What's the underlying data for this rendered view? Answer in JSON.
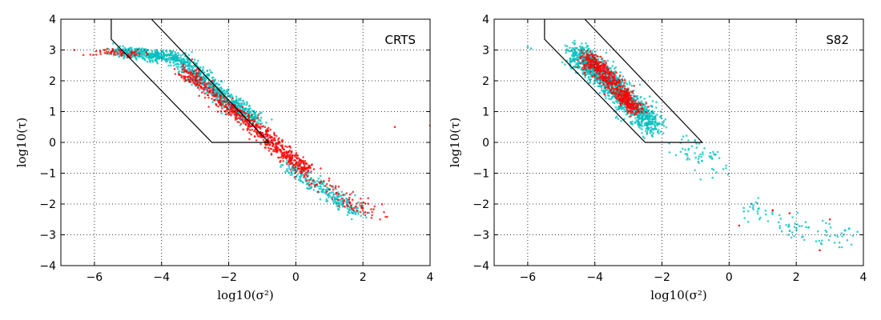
{
  "chart_data": [
    {
      "type": "scatter",
      "title": "CRTS",
      "xlabel": "log10(σ²)",
      "ylabel": "log10(τ)",
      "xlim": [
        -7,
        4
      ],
      "ylim": [
        -4,
        4
      ],
      "xticks": [
        -6,
        -4,
        -2,
        0,
        2,
        4
      ],
      "yticks": [
        -4,
        -3,
        -2,
        -1,
        0,
        1,
        2,
        3,
        4
      ],
      "xtick_labels": [
        "−6",
        "−4",
        "−2",
        "0",
        "2",
        "4"
      ],
      "ytick_labels": [
        "−4",
        "−3",
        "−2",
        "−1",
        "0",
        "1",
        "2",
        "3",
        "4"
      ],
      "grid": true,
      "selection_region": [
        [
          -5.5,
          4
        ],
        [
          -5.5,
          3.35
        ],
        [
          -2.5,
          0
        ],
        [
          -0.8,
          0
        ],
        [
          -4.3,
          4
        ]
      ],
      "series": [
        {
          "name": "cyan",
          "color": "#00bfbf",
          "clusters": [
            {
              "n": 1100,
              "path": [
                [
                  -5.3,
                  2.95
                ],
                [
                  -3.5,
                  2.75
                ],
                [
                  -2.3,
                  1.6
                ],
                [
                  -1.2,
                  0.7
                ]
              ],
              "spread": [
                0.35,
                0.18
              ]
            },
            {
              "n": 280,
              "path": [
                [
                  -0.3,
                  -0.7
                ],
                [
                  0.8,
                  -1.5
                ],
                [
                  1.9,
                  -2.3
                ]
              ],
              "spread": [
                0.3,
                0.2
              ]
            }
          ]
        },
        {
          "name": "red",
          "color": "#ff0000",
          "clusters": [
            {
              "n": 60,
              "path": [
                [
                  -5.9,
                  2.95
                ],
                [
                  -4.6,
                  2.85
                ]
              ],
              "spread": [
                0.3,
                0.12
              ]
            },
            {
              "n": 650,
              "path": [
                [
                  -3.4,
                  2.4
                ],
                [
                  -2.2,
                  1.3
                ],
                [
                  -1.2,
                  0.5
                ],
                [
                  -0.4,
                  -0.3
                ],
                [
                  0.3,
                  -0.9
                ]
              ],
              "spread": [
                0.25,
                0.2
              ]
            },
            {
              "n": 90,
              "path": [
                [
                  0.4,
                  -1.0
                ],
                [
                  1.6,
                  -1.9
                ],
                [
                  2.5,
                  -2.4
                ]
              ],
              "spread": [
                0.35,
                0.25
              ]
            }
          ],
          "points": [
            [
              4.0,
              0.55
            ],
            [
              2.95,
              0.5
            ],
            [
              -6.6,
              3.0
            ]
          ]
        }
      ]
    },
    {
      "type": "scatter",
      "title": "S82",
      "xlabel": "log10(σ²)",
      "ylabel": "log10(τ)",
      "xlim": [
        -7,
        4
      ],
      "ylim": [
        -4,
        4
      ],
      "xticks": [
        -6,
        -4,
        -2,
        0,
        2,
        4
      ],
      "yticks": [
        -4,
        -3,
        -2,
        -1,
        0,
        1,
        2,
        3,
        4
      ],
      "xtick_labels": [
        "−6",
        "−4",
        "−2",
        "0",
        "2",
        "4"
      ],
      "ytick_labels": [
        "−4",
        "−3",
        "−2",
        "−1",
        "0",
        "1",
        "2",
        "3",
        "4"
      ],
      "grid": true,
      "selection_region": [
        [
          -5.5,
          4
        ],
        [
          -5.5,
          3.35
        ],
        [
          -2.5,
          0
        ],
        [
          -0.8,
          0
        ],
        [
          -4.3,
          4
        ]
      ],
      "series": [
        {
          "name": "cyan",
          "color": "#00bfbf",
          "clusters": [
            {
              "n": 1300,
              "path": [
                [
                  -4.6,
                  2.9
                ],
                [
                  -3.8,
                  2.2
                ],
                [
                  -3.0,
                  1.3
                ],
                [
                  -2.2,
                  0.5
                ]
              ],
              "spread": [
                0.35,
                0.35
              ]
            },
            {
              "n": 60,
              "path": [
                [
                  -1.5,
                  0.0
                ],
                [
                  -0.2,
                  -0.9
                ]
              ],
              "spread": [
                0.4,
                0.35
              ]
            },
            {
              "n": 90,
              "path": [
                [
                  0.5,
                  -2.0
                ],
                [
                  1.8,
                  -2.8
                ],
                [
                  3.6,
                  -3.1
                ]
              ],
              "spread": [
                0.4,
                0.35
              ]
            }
          ],
          "points": [
            [
              -6.0,
              3.1
            ],
            [
              -5.9,
              3.05
            ]
          ]
        },
        {
          "name": "red",
          "color": "#ff0000",
          "clusters": [
            {
              "n": 550,
              "path": [
                [
                  -4.3,
                  2.85
                ],
                [
                  -3.8,
                  2.3
                ],
                [
                  -3.2,
                  1.6
                ],
                [
                  -2.8,
                  1.0
                ]
              ],
              "spread": [
                0.25,
                0.22
              ]
            }
          ],
          "points": [
            [
              1.8,
              -2.3
            ],
            [
              1.3,
              -2.2
            ],
            [
              3.0,
              -2.5
            ],
            [
              2.7,
              -3.5
            ],
            [
              0.3,
              -2.7
            ]
          ]
        }
      ]
    }
  ]
}
